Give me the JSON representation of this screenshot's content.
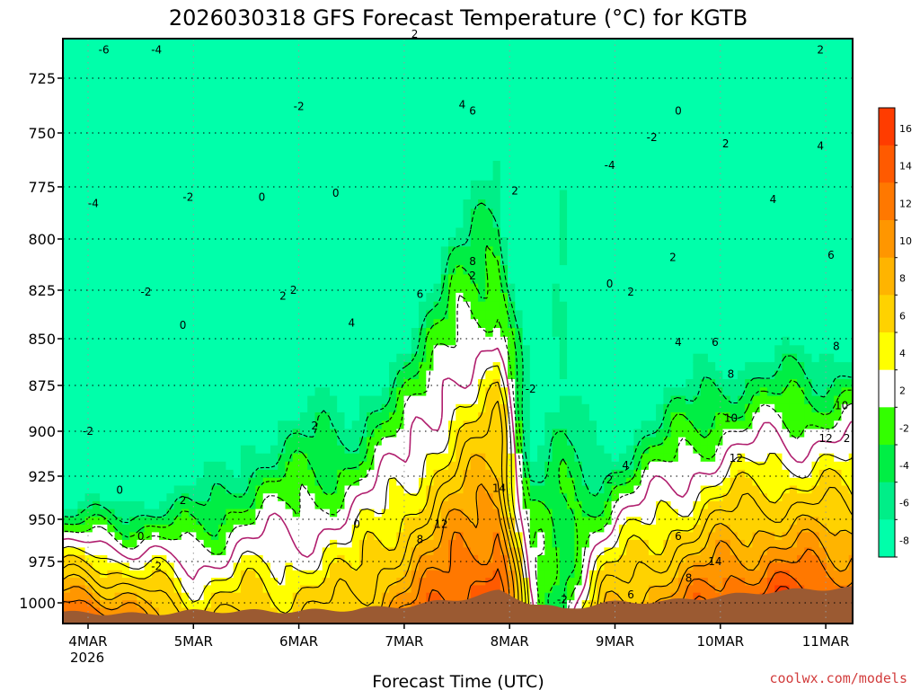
{
  "chart_data": {
    "type": "heatmap",
    "title": "2026030318 GFS Forecast Temperature (°C) for KGTB",
    "xlabel": "Forecast Time (UTC)",
    "ylabel": "",
    "x_ticks": [
      "4MAR",
      "5MAR",
      "6MAR",
      "7MAR",
      "8MAR",
      "9MAR",
      "10MAR",
      "11MAR"
    ],
    "x_year": "2026",
    "x_range_days": [
      4.0,
      11.15
    ],
    "y_ticks": [
      725,
      750,
      775,
      800,
      825,
      850,
      875,
      900,
      925,
      950,
      975,
      1000
    ],
    "y_range_hpa": [
      700,
      1010
    ],
    "colorbar_levels": [
      -10,
      -8,
      -6,
      -4,
      -2,
      2,
      4,
      6,
      8,
      10,
      12,
      14,
      16,
      18
    ],
    "colorbar_labels": [
      "16",
      "14",
      "12",
      "10",
      "8",
      "6",
      "4",
      "2",
      "-2",
      "-4",
      "-6",
      "-8"
    ],
    "colorbar_colors": [
      "#ff3c00",
      "#ff5a00",
      "#ff7800",
      "#ff9600",
      "#ffb400",
      "#ffd200",
      "#ffff00",
      "#ffffff",
      "#33ff00",
      "#00ee44",
      "#00ee88",
      "#00ffaa"
    ],
    "temperature_profile": [
      {
        "day": 4.0,
        "sfc": 12,
        "lapse": 0.34,
        "surface_hpa": 1006
      },
      {
        "day": 4.5,
        "sfc": 8,
        "lapse": 0.26,
        "surface_hpa": 1007
      },
      {
        "day": 5.0,
        "sfc": 4,
        "lapse": 0.18,
        "surface_hpa": 1005
      },
      {
        "day": 5.5,
        "sfc": 5,
        "lapse": 0.14,
        "surface_hpa": 1005
      },
      {
        "day": 6.0,
        "sfc": 5,
        "lapse": 0.12,
        "surface_hpa": 1005
      },
      {
        "day": 6.5,
        "sfc": 6,
        "lapse": 0.12,
        "surface_hpa": 1004
      },
      {
        "day": 7.0,
        "sfc": 11,
        "lapse": 0.13,
        "surface_hpa": 1002
      },
      {
        "day": 7.5,
        "sfc": 15,
        "lapse": 0.11,
        "surface_hpa": 998
      },
      {
        "day": 7.9,
        "sfc": 17,
        "lapse": 0.11,
        "surface_hpa": 993
      },
      {
        "day": 8.2,
        "sfc": 0,
        "lapse": 0.08,
        "surface_hpa": 1000
      },
      {
        "day": 8.5,
        "sfc": -4,
        "lapse": 0.02,
        "surface_hpa": 1004
      },
      {
        "day": 8.9,
        "sfc": 7,
        "lapse": 0.17,
        "surface_hpa": 1000
      },
      {
        "day": 9.5,
        "sfc": 11,
        "lapse": 0.16,
        "surface_hpa": 999
      },
      {
        "day": 10.0,
        "sfc": 14,
        "lapse": 0.16,
        "surface_hpa": 996
      },
      {
        "day": 10.5,
        "sfc": 16,
        "lapse": 0.17,
        "surface_hpa": 993
      },
      {
        "day": 11.15,
        "sfc": 15,
        "lapse": 0.16,
        "surface_hpa": 991
      }
    ],
    "contour_labels": [
      {
        "text": "-6",
        "day": 4.15,
        "hpa": 712
      },
      {
        "text": "-4",
        "day": 4.65,
        "hpa": 712
      },
      {
        "text": "2",
        "day": 7.1,
        "hpa": 705
      },
      {
        "text": "-2",
        "day": 6.0,
        "hpa": 738
      },
      {
        "text": "-2",
        "day": 4.95,
        "hpa": 780
      },
      {
        "text": "-4",
        "day": 4.05,
        "hpa": 783
      },
      {
        "text": "0",
        "day": 5.65,
        "hpa": 780
      },
      {
        "text": "0",
        "day": 6.35,
        "hpa": 778
      },
      {
        "text": "4",
        "day": 7.55,
        "hpa": 737
      },
      {
        "text": "6",
        "day": 7.65,
        "hpa": 740
      },
      {
        "text": "2",
        "day": 8.05,
        "hpa": 777
      },
      {
        "text": "-4",
        "day": 8.95,
        "hpa": 765
      },
      {
        "text": "-2",
        "day": 9.35,
        "hpa": 752
      },
      {
        "text": "0",
        "day": 9.6,
        "hpa": 740
      },
      {
        "text": "2",
        "day": 10.05,
        "hpa": 755
      },
      {
        "text": "2",
        "day": 10.95,
        "hpa": 712
      },
      {
        "text": "4",
        "day": 10.95,
        "hpa": 756
      },
      {
        "text": "4",
        "day": 10.5,
        "hpa": 781
      },
      {
        "text": "6",
        "day": 11.05,
        "hpa": 808
      },
      {
        "text": "2",
        "day": 9.55,
        "hpa": 809
      },
      {
        "text": "2",
        "day": 7.65,
        "hpa": 818
      },
      {
        "text": "8",
        "day": 7.65,
        "hpa": 811
      },
      {
        "text": "6",
        "day": 7.15,
        "hpa": 827
      },
      {
        "text": "0",
        "day": 8.95,
        "hpa": 822
      },
      {
        "text": "2",
        "day": 9.15,
        "hpa": 826
      },
      {
        "text": "-2",
        "day": 4.55,
        "hpa": 826
      },
      {
        "text": "2",
        "day": 5.85,
        "hpa": 828
      },
      {
        "text": "2",
        "day": 5.95,
        "hpa": 825
      },
      {
        "text": "0",
        "day": 4.9,
        "hpa": 843
      },
      {
        "text": "4",
        "day": 6.5,
        "hpa": 842
      },
      {
        "text": "4",
        "day": 9.6,
        "hpa": 852
      },
      {
        "text": "6",
        "day": 9.95,
        "hpa": 852
      },
      {
        "text": "8",
        "day": 11.1,
        "hpa": 854
      },
      {
        "text": "8",
        "day": 10.1,
        "hpa": 869
      },
      {
        "text": "-2",
        "day": 8.2,
        "hpa": 877
      },
      {
        "text": "10",
        "day": 11.15,
        "hpa": 886
      },
      {
        "text": "10",
        "day": 10.1,
        "hpa": 893
      },
      {
        "text": "2",
        "day": 6.15,
        "hpa": 897
      },
      {
        "text": "-2",
        "day": 4.0,
        "hpa": 900
      },
      {
        "text": "12",
        "day": 11.0,
        "hpa": 904
      },
      {
        "text": "2",
        "day": 11.2,
        "hpa": 904
      },
      {
        "text": "12",
        "day": 10.15,
        "hpa": 915
      },
      {
        "text": "4",
        "day": 9.1,
        "hpa": 919
      },
      {
        "text": "2",
        "day": 8.95,
        "hpa": 927
      },
      {
        "text": "0",
        "day": 4.3,
        "hpa": 933
      },
      {
        "text": "2",
        "day": 4.9,
        "hpa": 939
      },
      {
        "text": "14",
        "day": 7.9,
        "hpa": 932
      },
      {
        "text": "12",
        "day": 7.35,
        "hpa": 953
      },
      {
        "text": "0",
        "day": 6.55,
        "hpa": 953
      },
      {
        "text": "0",
        "day": 4.5,
        "hpa": 960
      },
      {
        "text": "8",
        "day": 7.15,
        "hpa": 962
      },
      {
        "text": "6",
        "day": 9.6,
        "hpa": 960
      },
      {
        "text": "-2",
        "day": 4.65,
        "hpa": 978
      },
      {
        "text": "14",
        "day": 9.95,
        "hpa": 975
      },
      {
        "text": "8",
        "day": 9.7,
        "hpa": 985
      },
      {
        "text": "6",
        "day": 9.15,
        "hpa": 995
      },
      {
        "text": "-2",
        "day": 8.5,
        "hpa": 998
      }
    ]
  },
  "credit": "coolwx.com/models",
  "colors": {
    "accent": "#d23c3c",
    "terrain": "#9b5a32",
    "warm_contour": "#000000",
    "zero_contour": "#b01e6e"
  }
}
